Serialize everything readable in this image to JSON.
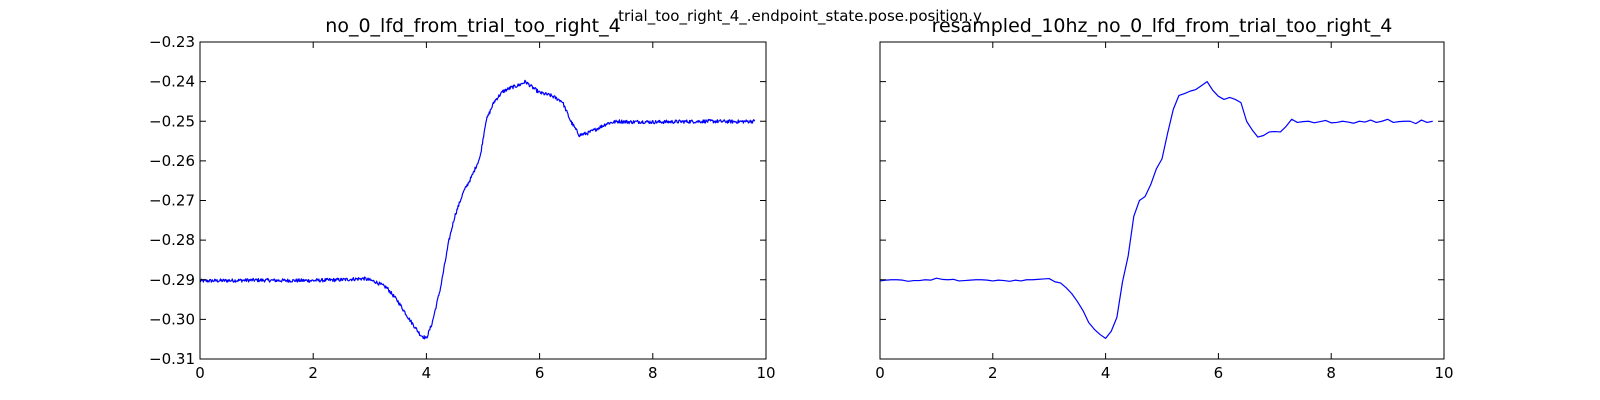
{
  "figure": {
    "suptitle": "trial_too_right_4_.endpoint_state.pose.position.y"
  },
  "chart_data": [
    {
      "type": "line",
      "title": "no_0_lfd_from_trial_too_right_4",
      "xlabel": "",
      "ylabel": "",
      "xlim": [
        0,
        10
      ],
      "ylim": [
        -0.31,
        -0.23
      ],
      "xticks": [
        0,
        2,
        4,
        6,
        8,
        10
      ],
      "xtick_labels": [
        "0",
        "2",
        "4",
        "6",
        "8",
        "10"
      ],
      "yticks": [
        -0.23,
        -0.24,
        -0.25,
        -0.26,
        -0.27,
        -0.28,
        -0.29,
        -0.3,
        -0.31
      ],
      "ytick_labels": [
        "−0.23",
        "−0.24",
        "−0.25",
        "−0.26",
        "−0.27",
        "−0.28",
        "−0.29",
        "−0.30",
        "−0.31"
      ],
      "grid": false,
      "color": "#0000ff",
      "noise": 0.00045,
      "series": [
        {
          "x": [
            0,
            0.5,
            1.0,
            1.5,
            2.0,
            2.5,
            2.9,
            3.1,
            3.3,
            3.5,
            3.7,
            3.9,
            4.0,
            4.1,
            4.25,
            4.4,
            4.5,
            4.65,
            4.8,
            4.95,
            5.05,
            5.2,
            5.35,
            5.5,
            5.65,
            5.75,
            5.85,
            6.0,
            6.2,
            6.4,
            6.55,
            6.7,
            6.85,
            7.0,
            7.2,
            7.4,
            7.6,
            7.8,
            8.0,
            8.5,
            9.0,
            9.5,
            9.8
          ],
          "y": [
            -0.2903,
            -0.2902,
            -0.2901,
            -0.2902,
            -0.2902,
            -0.29,
            -0.2897,
            -0.2905,
            -0.292,
            -0.2955,
            -0.3,
            -0.304,
            -0.3048,
            -0.301,
            -0.292,
            -0.28,
            -0.274,
            -0.268,
            -0.264,
            -0.259,
            -0.25,
            -0.245,
            -0.2425,
            -0.2415,
            -0.2408,
            -0.24,
            -0.2412,
            -0.2428,
            -0.2435,
            -0.245,
            -0.25,
            -0.2535,
            -0.253,
            -0.252,
            -0.2505,
            -0.25,
            -0.2502,
            -0.2501,
            -0.2502,
            -0.2501,
            -0.25,
            -0.2501,
            -0.25
          ]
        }
      ]
    },
    {
      "type": "line",
      "title": "resampled_10hz_no_0_lfd_from_trial_too_right_4",
      "xlabel": "",
      "ylabel": "",
      "xlim": [
        0,
        10
      ],
      "ylim": [
        -0.31,
        -0.23
      ],
      "xticks": [
        0,
        2,
        4,
        6,
        8,
        10
      ],
      "xtick_labels": [
        "0",
        "2",
        "4",
        "6",
        "8",
        "10"
      ],
      "yticks": [
        -0.23,
        -0.24,
        -0.25,
        -0.26,
        -0.27,
        -0.28,
        -0.29,
        -0.3,
        -0.31
      ],
      "ytick_labels": [],
      "grid": false,
      "color": "#0000ff",
      "noise": 0,
      "series": [
        {
          "x": [
            0.0,
            0.1,
            0.2,
            0.3,
            0.4,
            0.5,
            0.6,
            0.7,
            0.8,
            0.9,
            1.0,
            1.1,
            1.2,
            1.3,
            1.4,
            1.5,
            1.6,
            1.7,
            1.8,
            1.9,
            2.0,
            2.1,
            2.2,
            2.3,
            2.4,
            2.5,
            2.6,
            2.7,
            2.8,
            2.9,
            3.0,
            3.1,
            3.2,
            3.3,
            3.4,
            3.5,
            3.6,
            3.7,
            3.8,
            3.9,
            4.0,
            4.1,
            4.2,
            4.3,
            4.4,
            4.5,
            4.6,
            4.7,
            4.8,
            4.9,
            5.0,
            5.1,
            5.2,
            5.3,
            5.4,
            5.5,
            5.6,
            5.7,
            5.8,
            5.9,
            6.0,
            6.1,
            6.2,
            6.3,
            6.4,
            6.5,
            6.6,
            6.7,
            6.8,
            6.9,
            7.0,
            7.1,
            7.2,
            7.3,
            7.4,
            7.5,
            7.6,
            7.7,
            7.8,
            7.9,
            8.0,
            8.1,
            8.2,
            8.3,
            8.4,
            8.5,
            8.6,
            8.7,
            8.8,
            8.9,
            9.0,
            9.1,
            9.2,
            9.3,
            9.4,
            9.5,
            9.6,
            9.7,
            9.8
          ],
          "y": [
            -0.2903,
            -0.2901,
            -0.29,
            -0.29,
            -0.2901,
            -0.2904,
            -0.2902,
            -0.2902,
            -0.29,
            -0.2901,
            -0.2896,
            -0.2899,
            -0.29,
            -0.2899,
            -0.2903,
            -0.2902,
            -0.2901,
            -0.29,
            -0.29,
            -0.2901,
            -0.2903,
            -0.2901,
            -0.2902,
            -0.2904,
            -0.2901,
            -0.2903,
            -0.29,
            -0.29,
            -0.2899,
            -0.2898,
            -0.2897,
            -0.2905,
            -0.2908,
            -0.292,
            -0.2935,
            -0.2955,
            -0.2978,
            -0.3008,
            -0.3025,
            -0.3038,
            -0.3048,
            -0.303,
            -0.2995,
            -0.2905,
            -0.284,
            -0.274,
            -0.27,
            -0.269,
            -0.266,
            -0.262,
            -0.2595,
            -0.253,
            -0.247,
            -0.2435,
            -0.243,
            -0.2424,
            -0.242,
            -0.241,
            -0.24,
            -0.2422,
            -0.2437,
            -0.2445,
            -0.244,
            -0.2445,
            -0.2453,
            -0.25,
            -0.2522,
            -0.254,
            -0.2536,
            -0.2527,
            -0.2526,
            -0.2527,
            -0.2513,
            -0.2495,
            -0.2503,
            -0.2501,
            -0.25,
            -0.2504,
            -0.2501,
            -0.2498,
            -0.2504,
            -0.2503,
            -0.25,
            -0.2502,
            -0.2505,
            -0.25,
            -0.2502,
            -0.2497,
            -0.2503,
            -0.25,
            -0.2495,
            -0.2503,
            -0.2501,
            -0.25,
            -0.25,
            -0.2506,
            -0.2497,
            -0.2503,
            -0.25
          ]
        }
      ]
    }
  ]
}
